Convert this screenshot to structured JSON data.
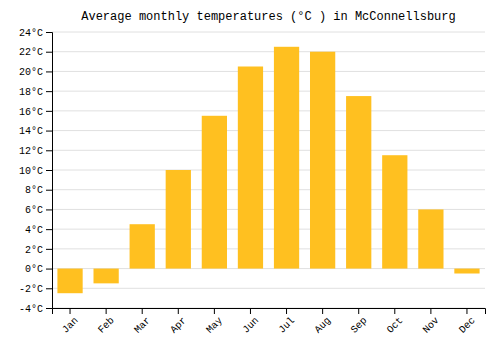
{
  "chart_data": {
    "type": "bar",
    "title": "Average monthly temperatures (°C ) in McConnellsburg",
    "categories": [
      "Jan",
      "Feb",
      "Mar",
      "Apr",
      "May",
      "Jun",
      "Jul",
      "Aug",
      "Sep",
      "Oct",
      "Nov",
      "Dec"
    ],
    "values": [
      -2.5,
      -1.5,
      4.5,
      10.0,
      15.5,
      20.5,
      22.5,
      22.0,
      17.5,
      11.5,
      6.0,
      -0.5
    ],
    "color": "#FFC020",
    "ylim": [
      -4,
      24
    ],
    "yticks": [
      {
        "value": -4,
        "label": "-4°C"
      },
      {
        "value": -2,
        "label": "-2°C"
      },
      {
        "value": 0,
        "label": "0°C"
      },
      {
        "value": 2,
        "label": "2°C"
      },
      {
        "value": 4,
        "label": "4°C"
      },
      {
        "value": 6,
        "label": "6°C"
      },
      {
        "value": 8,
        "label": "8°C"
      },
      {
        "value": 10,
        "label": "10°C"
      },
      {
        "value": 12,
        "label": "12°C"
      },
      {
        "value": 14,
        "label": "14°C"
      },
      {
        "value": 16,
        "label": "16°C"
      },
      {
        "value": 18,
        "label": "18°C"
      },
      {
        "value": 20,
        "label": "20°C"
      },
      {
        "value": 22,
        "label": "22°C"
      },
      {
        "value": 24,
        "label": "24°C"
      }
    ],
    "grid": true
  }
}
